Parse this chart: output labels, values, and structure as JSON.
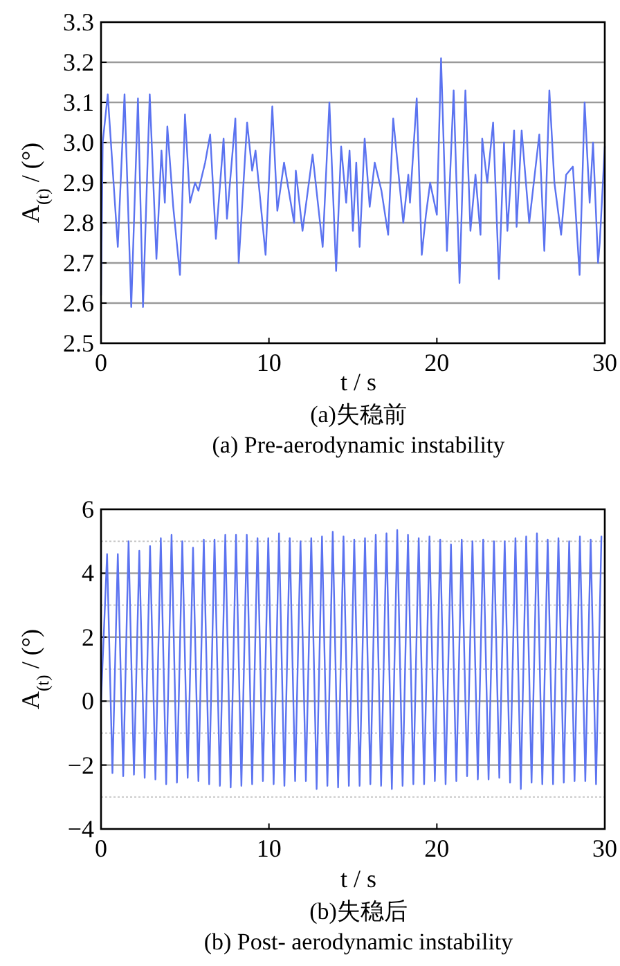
{
  "chart_data": [
    {
      "type": "line",
      "xlabel": "t / s",
      "ylabel": "A$_{(t)}$ / (°)",
      "annotations": [
        "(a)失稳前",
        "(a) Pre-aerodynamic instability"
      ],
      "xlim": [
        0,
        30
      ],
      "xticks": [
        0,
        10,
        20,
        30
      ],
      "ylim": [
        2.5,
        3.3
      ],
      "yticks": [
        2.5,
        2.6,
        2.7,
        2.8,
        2.9,
        {
          "value": 3,
          "label": "3.0"
        },
        3.1,
        3.2,
        3.3
      ],
      "grid": "y",
      "tick_labels": "xy",
      "series": [
        {
          "color": "#5b73f0",
          "x": [
            0,
            0.1,
            0.4,
            1.0,
            1.4,
            1.8,
            2.2,
            2.5,
            2.9,
            3.3,
            3.6,
            3.8,
            3.95,
            4.3,
            4.7,
            5.0,
            5.3,
            5.6,
            5.8,
            6.2,
            6.5,
            6.84,
            7.3,
            7.5,
            8.0,
            8.2,
            8.7,
            9.0,
            9.2,
            9.8,
            10.2,
            10.5,
            10.9,
            11.5,
            11.6,
            12.0,
            12.6,
            13.2,
            13.6,
            14.0,
            14.3,
            14.6,
            14.8,
            15.0,
            15.2,
            15.4,
            15.7,
            16.0,
            16.3,
            16.7,
            17.1,
            17.4,
            18.0,
            18.3,
            18.4,
            18.8,
            19.1,
            19.35,
            19.6,
            20.0,
            20.25,
            20.6,
            21.0,
            21.35,
            21.7,
            22.0,
            22.3,
            22.6,
            22.7,
            23.0,
            23.35,
            23.7,
            24.0,
            24.2,
            24.6,
            24.75,
            25.05,
            25.5,
            26.1,
            26.4,
            26.7,
            27.0,
            27.4,
            27.7,
            28.1,
            28.5,
            28.8,
            29.1,
            29.3,
            29.6,
            29.7,
            30
          ],
          "values": [
            2.62,
            3.0,
            3.12,
            2.74,
            3.12,
            2.59,
            3.11,
            2.59,
            3.12,
            2.71,
            2.98,
            2.85,
            3.04,
            2.84,
            2.67,
            3.07,
            2.85,
            2.9,
            2.88,
            2.95,
            3.02,
            2.76,
            3.01,
            2.81,
            3.06,
            2.7,
            3.05,
            2.93,
            2.98,
            2.72,
            3.09,
            2.83,
            2.95,
            2.8,
            2.93,
            2.78,
            2.97,
            2.74,
            3.1,
            2.68,
            2.99,
            2.85,
            2.98,
            2.78,
            2.95,
            2.74,
            3.01,
            2.84,
            2.95,
            2.88,
            2.77,
            3.06,
            2.8,
            2.92,
            2.85,
            3.11,
            2.72,
            2.82,
            2.9,
            2.82,
            3.21,
            2.73,
            3.13,
            2.65,
            3.13,
            2.78,
            2.92,
            2.77,
            3.01,
            2.9,
            3.05,
            2.66,
            3.0,
            2.78,
            3.03,
            2.79,
            3.03,
            2.8,
            3.02,
            2.73,
            3.13,
            2.9,
            2.77,
            2.92,
            2.94,
            2.67,
            3.1,
            2.85,
            3.0,
            2.7,
            2.75,
            2.99
          ]
        }
      ]
    },
    {
      "type": "line",
      "xlabel": "t / s",
      "ylabel": "A$_{(t)}$ / (°)",
      "annotations": [
        "(b)失稳后",
        "(b) Post- aerodynamic instability"
      ],
      "xlim": [
        0,
        30
      ],
      "xticks": [
        0,
        10,
        20,
        30
      ],
      "ylim": [
        -4,
        6
      ],
      "yticks": [
        -4,
        -2,
        0,
        2,
        4,
        6
      ],
      "grid": "y",
      "tick_labels": "xy",
      "ref_lines": [
        {
          "axis": "y",
          "value": 5,
          "label": null,
          "color": "#c8c8c8",
          "line_style": "dotted"
        },
        {
          "axis": "y",
          "value": 3,
          "label": null,
          "color": "#c8c8c8",
          "line_style": "dotted"
        },
        {
          "axis": "y",
          "value": 1,
          "label": null,
          "color": "#c8c8c8",
          "line_style": "dotted"
        },
        {
          "axis": "y",
          "value": -1,
          "label": null,
          "color": "#c8c8c8",
          "line_style": "dotted"
        },
        {
          "axis": "y",
          "value": -3,
          "label": null,
          "color": "#c8c8c8",
          "line_style": "dotted"
        }
      ],
      "series": [
        {
          "color": "#5b73f0",
          "x": [
            0,
            0.36,
            0.68,
            1.0,
            1.32,
            1.64,
            1.96,
            2.28,
            2.6,
            2.92,
            3.24,
            3.56,
            3.88,
            4.2,
            4.52,
            4.84,
            5.16,
            5.48,
            5.8,
            6.12,
            6.44,
            6.76,
            7.08,
            7.4,
            7.72,
            8.04,
            8.36,
            8.68,
            9.0,
            9.32,
            9.64,
            9.96,
            10.28,
            10.6,
            10.92,
            11.24,
            11.56,
            11.88,
            12.2,
            12.52,
            12.84,
            13.16,
            13.48,
            13.8,
            14.12,
            14.44,
            14.76,
            15.08,
            15.4,
            15.72,
            16.04,
            16.36,
            16.68,
            17.0,
            17.32,
            17.64,
            17.96,
            18.28,
            18.6,
            18.92,
            19.24,
            19.56,
            19.88,
            20.2,
            20.52,
            20.84,
            21.16,
            21.48,
            21.8,
            22.12,
            22.44,
            22.76,
            23.08,
            23.4,
            23.72,
            24.04,
            24.36,
            24.68,
            25.0,
            25.32,
            25.64,
            25.96,
            26.28,
            26.6,
            26.92,
            27.24,
            27.56,
            27.88,
            28.2,
            28.52,
            28.84,
            29.16,
            29.48,
            29.8
          ],
          "values": [
            0,
            4.6,
            -2.25,
            4.6,
            -2.35,
            5.0,
            -2.3,
            4.7,
            -2.4,
            4.85,
            -2.45,
            5.1,
            -2.6,
            5.2,
            -2.55,
            5.0,
            -2.4,
            4.8,
            -2.5,
            5.05,
            -2.6,
            5.05,
            -2.65,
            5.2,
            -2.7,
            5.2,
            -2.65,
            5.2,
            -2.6,
            5.1,
            -2.5,
            5.1,
            -2.6,
            5.25,
            -2.65,
            5.1,
            -2.5,
            5.0,
            -2.5,
            5.1,
            -2.75,
            5.15,
            -2.65,
            5.3,
            -2.7,
            5.15,
            -2.65,
            5.05,
            -2.65,
            5.1,
            -2.6,
            5.2,
            -2.65,
            5.25,
            -2.75,
            5.35,
            -2.65,
            5.2,
            -2.6,
            5.1,
            -2.6,
            5.15,
            -2.5,
            5.05,
            -2.6,
            4.9,
            -2.5,
            5.05,
            -2.35,
            5.0,
            -2.45,
            5.05,
            -2.45,
            5.0,
            -2.4,
            5.0,
            -2.55,
            5.1,
            -2.75,
            5.15,
            -2.55,
            5.25,
            -2.6,
            5.05,
            -2.6,
            5.1,
            -2.55,
            5.0,
            -2.5,
            5.15,
            -2.5,
            5.05,
            -2.6,
            5.15
          ]
        }
      ]
    }
  ]
}
